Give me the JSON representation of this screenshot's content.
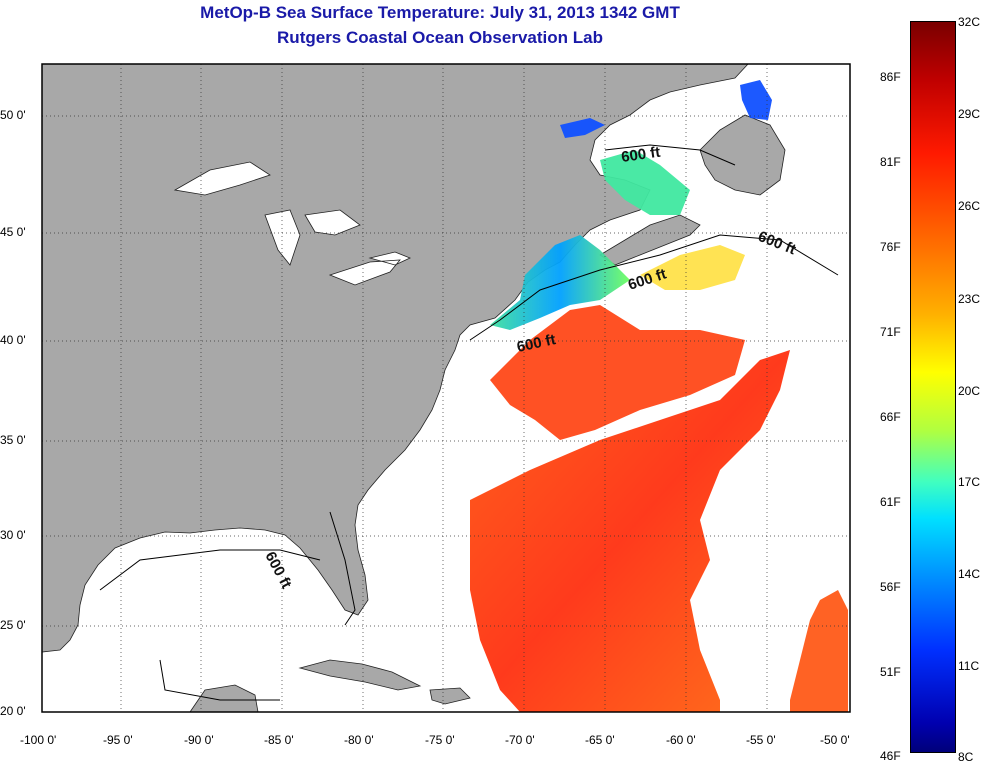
{
  "title": {
    "line1": "MetOp-B Sea Surface Temperature:  July 31, 2013 1342 GMT",
    "line2": "Rutgers Coastal Ocean Observation Lab"
  },
  "map": {
    "lon_ticks": [
      "-100 0'",
      "-95 0'",
      "-90 0'",
      "-85 0'",
      "-80 0'",
      "-75 0'",
      "-70 0'",
      "-65 0'",
      "-60 0'",
      "-55 0'",
      "-50 0'"
    ],
    "lat_ticks": [
      "50 0'",
      "45 0'",
      "40 0'",
      "35 0'",
      "30 0'",
      "25 0'",
      "20 0'"
    ],
    "isobath_label": "600 ft",
    "land_color": "#a8a8a8"
  },
  "colorbar": {
    "fahrenheit": [
      "86F",
      "81F",
      "76F",
      "71F",
      "66F",
      "61F",
      "56F",
      "51F",
      "46F"
    ],
    "celsius": [
      "32C",
      "29C",
      "26C",
      "23C",
      "20C",
      "17C",
      "14C",
      "11C",
      "8C"
    ]
  }
}
